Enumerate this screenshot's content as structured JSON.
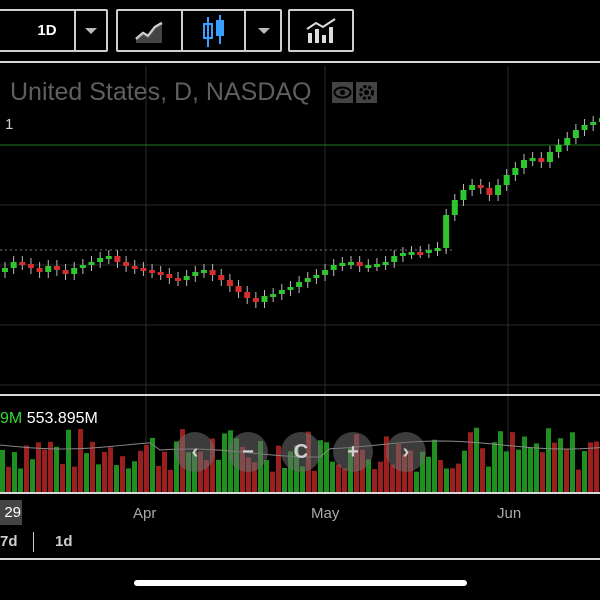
{
  "toolbar": {
    "interval_label": "1D",
    "icons": [
      "dropdown-chevron-icon",
      "line-chart-icon",
      "candlestick-icon",
      "dropdown-chevron-icon",
      "indicators-icon"
    ]
  },
  "chart": {
    "title": "United States, D, NASDAQ",
    "left_marker": "1",
    "volume_partial": "9M",
    "volume_value": "553.895M",
    "x_labels": [
      "Apr",
      "May",
      "Jun"
    ],
    "cursor_date": "29",
    "colors": {
      "up": "#2fc52f",
      "down": "#d32f2f",
      "grid": "#2a2a2a",
      "ref_line": "#1f7a1f"
    }
  },
  "chart_data": {
    "type": "candlestick",
    "x_labels": [
      "Apr",
      "May",
      "Jun"
    ],
    "volume_label": "553.895M",
    "price_trend": "flat from March through mid-May, then rising sharply into June"
  },
  "nav_buttons": [
    "‹",
    "−",
    "C",
    "+",
    "›"
  ],
  "range_options": [
    "7d",
    "1d"
  ]
}
